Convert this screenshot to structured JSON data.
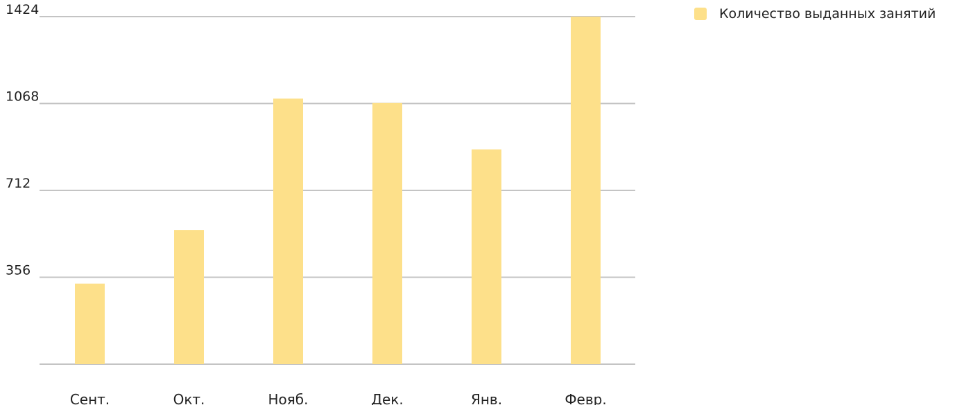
{
  "chart_data": {
    "type": "bar",
    "categories": [
      "Сент.",
      "Окт.",
      "Нояб.",
      "Дек.",
      "Янв.",
      "Февр."
    ],
    "series": [
      {
        "name": "Количество выданных занятий",
        "values": [
          330,
          550,
          1088,
          1070,
          880,
          1424
        ],
        "color": "#fde08a"
      }
    ],
    "y_ticks": [
      "356",
      "712",
      "1068",
      "1424"
    ],
    "ylim": [
      0,
      1424
    ],
    "grid": true,
    "legend_position": "top-right",
    "gridline_color": "#c4c4c4"
  }
}
